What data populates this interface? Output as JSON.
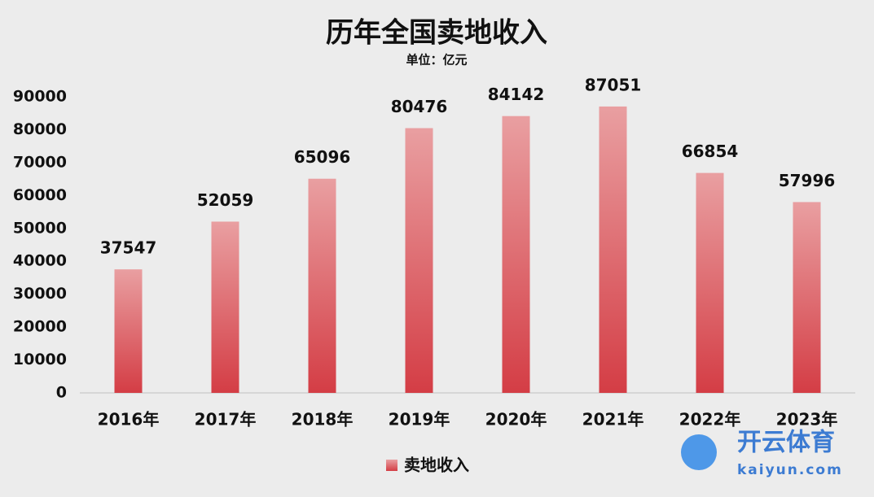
{
  "chart_data": {
    "type": "bar",
    "title": "历年全国卖地收入",
    "subtitle": "单位：亿元",
    "categories": [
      "2016年",
      "2017年",
      "2018年",
      "2019年",
      "2020年",
      "2021年",
      "2022年",
      "2023年"
    ],
    "series": [
      {
        "name": "卖地收入",
        "color": "#d43d45",
        "values": [
          37547,
          52059,
          65096,
          80476,
          84142,
          87051,
          66854,
          57996
        ]
      }
    ],
    "ylim": [
      0,
      90000
    ],
    "yticks": [
      0,
      10000,
      20000,
      30000,
      40000,
      50000,
      60000,
      70000,
      80000,
      90000
    ],
    "grid": false,
    "legend": "bottom"
  },
  "watermark": {
    "brand": "开云体育",
    "url": "kaiyun.com"
  }
}
